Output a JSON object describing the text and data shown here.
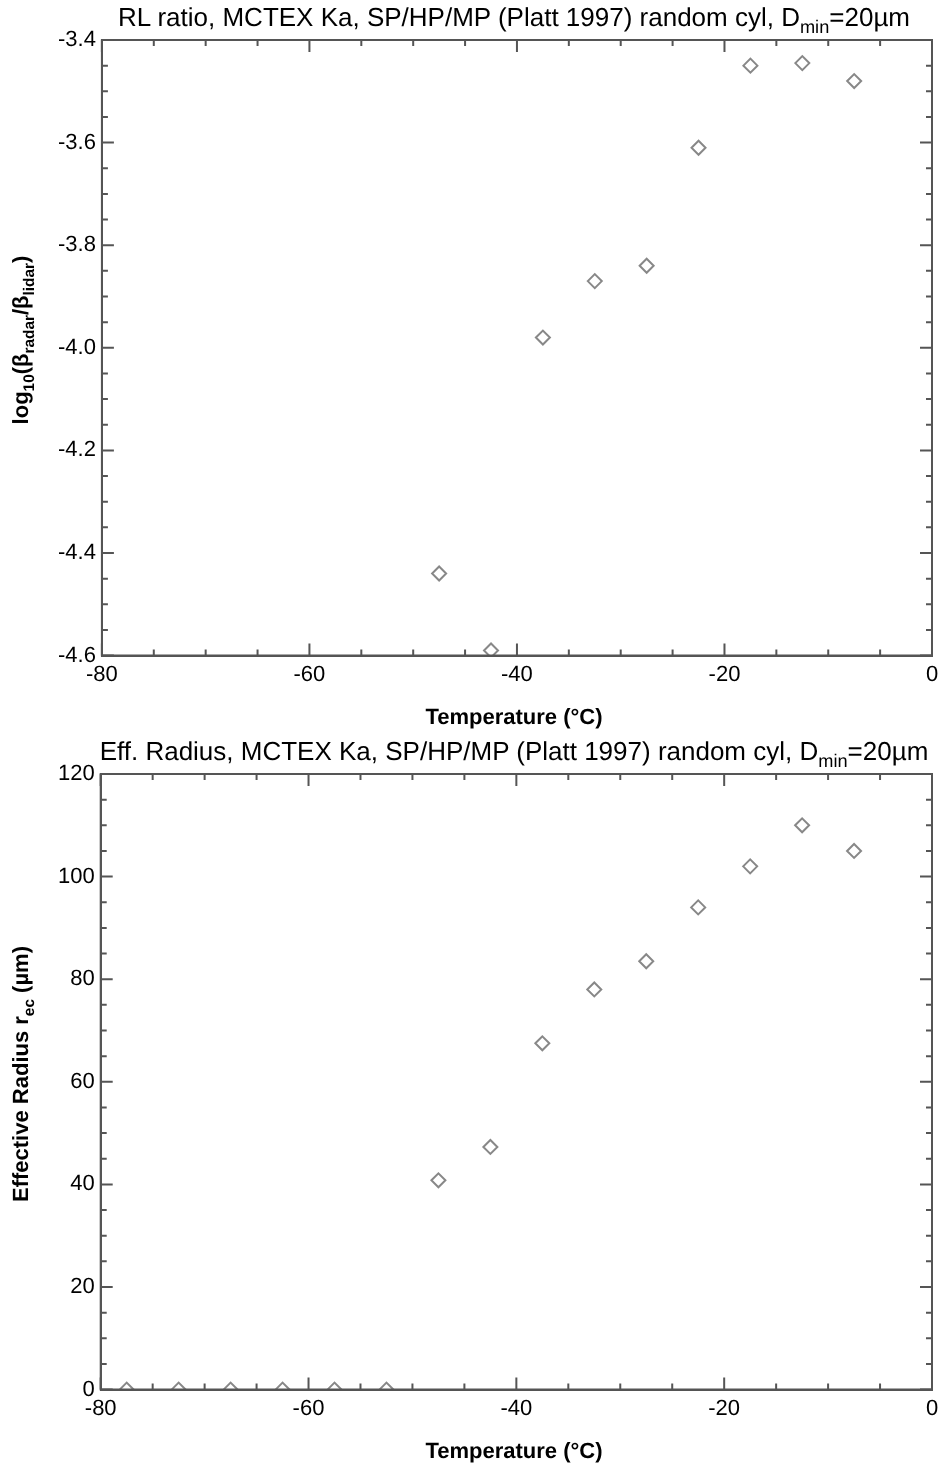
{
  "chart_data": [
    {
      "type": "scatter",
      "title": "RL ratio, MCTEX Ka, SP/HP/MP (Platt 1997) random cyl, D$_{min}$=20µm",
      "xlabel": "Temperature (°C)",
      "ylabel": "log$_{10}$(β$_{radar}$/β$_{lidar}$)",
      "x": [
        -47.5,
        -42.5,
        -37.5,
        -32.5,
        -27.5,
        -22.5,
        -17.5,
        -12.5,
        -7.5
      ],
      "series": [
        {
          "color": "#888888",
          "values": [
            -4.44,
            -4.59,
            -3.98,
            -3.87,
            -3.84,
            -3.61,
            -3.45,
            -3.445,
            -3.48
          ]
        }
      ],
      "xlim": [
        -80,
        0
      ],
      "xticks": [
        -80,
        {
          "value": -75,
          "label": null
        },
        {
          "value": -70,
          "label": null
        },
        {
          "value": -65,
          "label": null
        },
        -60,
        {
          "value": -55,
          "label": null
        },
        {
          "value": -50,
          "label": null
        },
        {
          "value": -45,
          "label": null
        },
        -40,
        {
          "value": -35,
          "label": null
        },
        {
          "value": -30,
          "label": null
        },
        {
          "value": -25,
          "label": null
        },
        -20,
        {
          "value": -15,
          "label": null
        },
        {
          "value": -10,
          "label": null
        },
        {
          "value": -5,
          "label": null
        },
        0
      ],
      "ylim": [
        -4.6,
        -3.4
      ],
      "yticks": [
        -4.6,
        {
          "value": -4.55,
          "label": null
        },
        {
          "value": -4.5,
          "label": null
        },
        {
          "value": -4.45,
          "label": null
        },
        -4.4,
        {
          "value": -4.35,
          "label": null
        },
        {
          "value": -4.3,
          "label": null
        },
        {
          "value": -4.25,
          "label": null
        },
        -4.2,
        {
          "value": -4.15,
          "label": null
        },
        {
          "value": -4.1,
          "label": null
        },
        {
          "value": -4.05,
          "label": null
        },
        {
          "value": -4.0,
          "label": "-4.0"
        },
        {
          "value": -3.95,
          "label": null
        },
        {
          "value": -3.9,
          "label": null
        },
        {
          "value": -3.85,
          "label": null
        },
        -3.8,
        {
          "value": -3.75,
          "label": null
        },
        {
          "value": -3.7,
          "label": null
        },
        {
          "value": -3.65,
          "label": null
        },
        -3.6,
        {
          "value": -3.55,
          "label": null
        },
        {
          "value": -3.5,
          "label": null
        },
        {
          "value": -3.45,
          "label": null
        },
        -3.4
      ],
      "grid": false,
      "legend": false,
      "marker": "diamond"
    },
    {
      "type": "scatter",
      "title": "Eff. Radius, MCTEX Ka, SP/HP/MP (Platt 1997) random cyl, D$_{min}$=20µm",
      "xlabel": "Temperature (°C)",
      "ylabel": "Effective Radius r$_{ec}$ (µm)",
      "x": [
        -77.5,
        -72.5,
        -67.5,
        -62.5,
        -57.5,
        -52.5,
        -47.5,
        -42.5,
        -37.5,
        -32.5,
        -27.5,
        -22.5,
        -17.5,
        -12.5,
        -7.5
      ],
      "series": [
        {
          "color": "#888888",
          "values": [
            0,
            0,
            0,
            0,
            0,
            0,
            40.8,
            47.3,
            67.5,
            78,
            83.5,
            94,
            102,
            110,
            105
          ]
        }
      ],
      "xlim": [
        -80,
        0
      ],
      "xticks": [
        -80,
        {
          "value": -75,
          "label": null
        },
        {
          "value": -70,
          "label": null
        },
        {
          "value": -65,
          "label": null
        },
        -60,
        {
          "value": -55,
          "label": null
        },
        {
          "value": -50,
          "label": null
        },
        {
          "value": -45,
          "label": null
        },
        -40,
        {
          "value": -35,
          "label": null
        },
        {
          "value": -30,
          "label": null
        },
        {
          "value": -25,
          "label": null
        },
        -20,
        {
          "value": -15,
          "label": null
        },
        {
          "value": -10,
          "label": null
        },
        {
          "value": -5,
          "label": null
        },
        0
      ],
      "ylim": [
        0,
        120
      ],
      "yticks": [
        0,
        {
          "value": 5,
          "label": null
        },
        {
          "value": 10,
          "label": null
        },
        {
          "value": 15,
          "label": null
        },
        20,
        {
          "value": 25,
          "label": null
        },
        {
          "value": 30,
          "label": null
        },
        {
          "value": 35,
          "label": null
        },
        40,
        {
          "value": 45,
          "label": null
        },
        {
          "value": 50,
          "label": null
        },
        {
          "value": 55,
          "label": null
        },
        60,
        {
          "value": 65,
          "label": null
        },
        {
          "value": 70,
          "label": null
        },
        {
          "value": 75,
          "label": null
        },
        80,
        {
          "value": 85,
          "label": null
        },
        {
          "value": 90,
          "label": null
        },
        {
          "value": 95,
          "label": null
        },
        100,
        {
          "value": 105,
          "label": null
        },
        {
          "value": 110,
          "label": null
        },
        {
          "value": 115,
          "label": null
        },
        120
      ],
      "grid": false,
      "legend": false,
      "marker": "diamond"
    }
  ]
}
